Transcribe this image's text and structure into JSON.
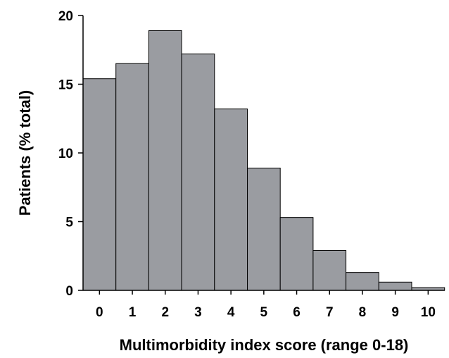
{
  "chart_data": {
    "type": "bar",
    "categories": [
      "0",
      "1",
      "2",
      "3",
      "4",
      "5",
      "6",
      "7",
      "8",
      "9",
      "10"
    ],
    "values": [
      15.4,
      16.5,
      18.9,
      17.2,
      13.2,
      8.9,
      5.3,
      2.9,
      1.3,
      0.6,
      0.2
    ],
    "title": "",
    "xlabel": "Multimorbidity index score (range 0-18)",
    "ylabel": "Patients (% total)",
    "ylim": [
      0,
      20
    ],
    "yticks": [
      "0",
      "5",
      "10",
      "15",
      "20"
    ],
    "bar_color": "#9a9ca1",
    "grid": false,
    "legend": "none"
  }
}
